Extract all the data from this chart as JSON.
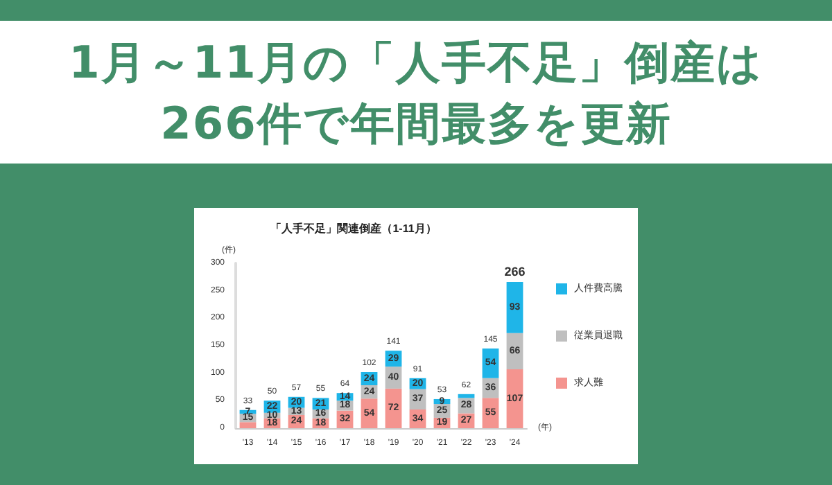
{
  "chart_data": {
    "type": "bar",
    "title": "1月～11月の「人手不足」倒産は266件で年間最多を更新",
    "subtitle": "「人手不足」関連倒産（1-11月）",
    "xlabel": "(年)",
    "ylabel": "(件)",
    "categories": [
      "'13",
      "'14",
      "'15",
      "'16",
      "'17",
      "'18",
      "'19",
      "'20",
      "'21",
      "'22",
      "'23",
      "'24"
    ],
    "stacked": true,
    "ylim": [
      0,
      300
    ],
    "yticks": [
      0,
      50,
      100,
      150,
      200,
      250,
      300
    ],
    "grid": false,
    "legend": "right",
    "series": [
      {
        "name": "求人難",
        "color": "#f4948f",
        "values": [
          11,
          18,
          24,
          18,
          32,
          54,
          72,
          34,
          19,
          27,
          55,
          107
        ],
        "value_labels": [
          null,
          "18",
          "24",
          "18",
          "32",
          "54",
          "72",
          "34",
          "19",
          "27",
          "55",
          "107"
        ]
      },
      {
        "name": "従業員退職",
        "color": "#bfbfbf",
        "values": [
          15,
          10,
          13,
          16,
          18,
          24,
          40,
          37,
          25,
          28,
          36,
          66
        ],
        "value_labels": [
          "15",
          "10",
          "13",
          "16",
          "18",
          "24",
          "40",
          "37",
          "25",
          "28",
          "36",
          "66"
        ]
      },
      {
        "name": "人件費高騰",
        "color": "#1fb5e8",
        "values": [
          7,
          22,
          20,
          21,
          14,
          24,
          29,
          20,
          9,
          7,
          54,
          93
        ],
        "value_labels": [
          "7",
          "22",
          "20",
          "21",
          "14",
          "24",
          "29",
          "20",
          "9",
          null,
          "54",
          "93"
        ]
      }
    ],
    "totals": [
      "33",
      "50",
      "57",
      "55",
      "64",
      "102",
      "141",
      "91",
      "53",
      "62",
      "145",
      "266"
    ]
  }
}
